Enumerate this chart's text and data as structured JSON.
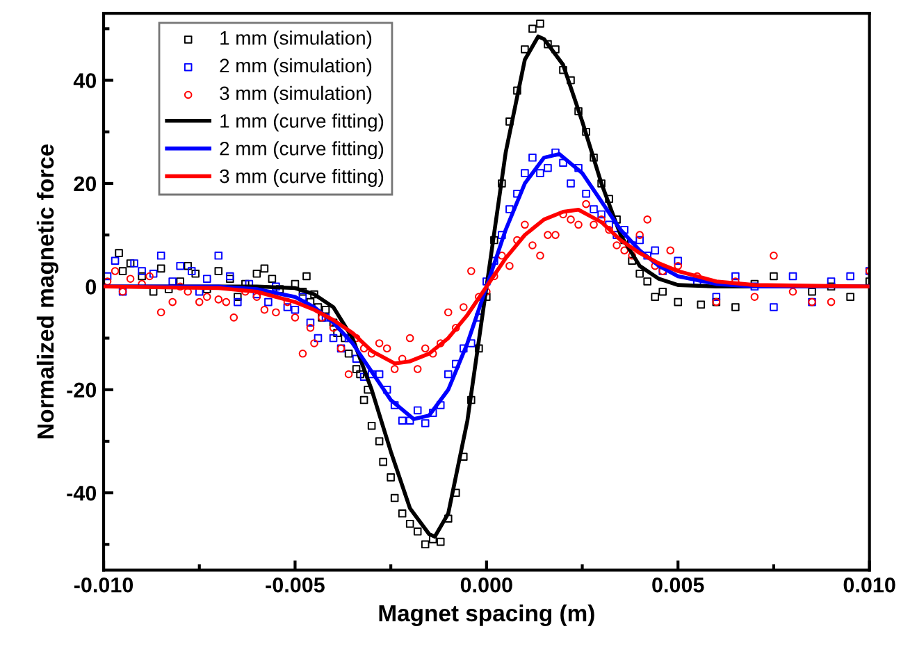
{
  "chart_data": {
    "type": "scatter",
    "xlabel": "Magnet spacing (m)",
    "ylabel": "Normalized magnetic force",
    "xlim": [
      -0.01,
      0.01
    ],
    "ylim": [
      -55,
      53
    ],
    "xticks": [
      {
        "value": -0.01,
        "label": "-0.010"
      },
      {
        "value": -0.005,
        "label": "-0.005"
      },
      {
        "value": 0,
        "label": "0.000"
      },
      {
        "value": 0.005,
        "label": "0.005"
      },
      {
        "value": 0.01,
        "label": "0.010"
      }
    ],
    "yticks": [
      -40,
      -20,
      0,
      20,
      40
    ],
    "grid": false,
    "legend": "top left",
    "series": [
      {
        "name": "1 mm (simulation)",
        "marker": "square",
        "color": "#000000",
        "x": [
          -0.0096,
          -0.0095,
          -0.0093,
          -0.009,
          -0.0087,
          -0.0085,
          -0.0083,
          -0.008,
          -0.0078,
          -0.0076,
          -0.0073,
          -0.007,
          -0.0067,
          -0.0065,
          -0.0063,
          -0.006,
          -0.0058,
          -0.0056,
          -0.0054,
          -0.005,
          -0.0048,
          -0.0047,
          -0.0046,
          -0.0045,
          -0.0044,
          -0.0043,
          -0.0042,
          -0.004,
          -0.0039,
          -0.0037,
          -0.0036,
          -0.0034,
          -0.0033,
          -0.0032,
          -0.0031,
          -0.003,
          -0.0028,
          -0.0027,
          -0.0025,
          -0.0024,
          -0.0022,
          -0.002,
          -0.0018,
          -0.0016,
          -0.0014,
          -0.0012,
          -0.001,
          -0.0008,
          -0.0006,
          -0.0004,
          -0.0002,
          0,
          0.0002,
          0.0004,
          0.0006,
          0.0008,
          0.001,
          0.0012,
          0.0014,
          0.0016,
          0.0018,
          0.002,
          0.0022,
          0.0024,
          0.0026,
          0.0028,
          0.003,
          0.0032,
          0.0034,
          0.0036,
          0.0038,
          0.004,
          0.0042,
          0.0044,
          0.0046,
          0.005,
          0.0056,
          0.006,
          0.0065,
          0.007,
          0.0075,
          0.0085,
          0.009,
          0.0095,
          0.01
        ],
        "values": [
          6.5,
          3,
          4.5,
          2,
          -1,
          3.5,
          -0.5,
          1,
          4,
          2.5,
          -0.5,
          3,
          1.5,
          -2,
          0.5,
          2.5,
          3.5,
          1.5,
          -0.5,
          0.5,
          -1,
          2,
          -3,
          -1.5,
          -4,
          -6,
          -4.5,
          -7,
          -9,
          -10,
          -13,
          -16,
          -17,
          -22,
          -20,
          -27,
          -30,
          -34,
          -37,
          -41,
          -44,
          -46,
          -47.5,
          -50,
          -49,
          -49.5,
          -45,
          -40,
          -33,
          -22,
          -12,
          -2,
          9,
          20,
          32,
          38,
          46,
          50,
          51,
          47,
          46,
          42,
          40,
          34,
          30,
          25,
          20,
          17,
          13,
          9,
          5,
          2.5,
          1,
          -2,
          -1,
          -3,
          -3.5,
          -3,
          -4,
          0.5,
          2,
          -1,
          0,
          -2,
          1
        ]
      },
      {
        "name": "2 mm (simulation)",
        "marker": "square",
        "color": "#0000ff",
        "x": [
          -0.0099,
          -0.0097,
          -0.0095,
          -0.0092,
          -0.009,
          -0.0087,
          -0.0085,
          -0.0082,
          -0.008,
          -0.0077,
          -0.0075,
          -0.0073,
          -0.007,
          -0.0067,
          -0.0065,
          -0.0062,
          -0.006,
          -0.0057,
          -0.0055,
          -0.0052,
          -0.005,
          -0.0048,
          -0.0046,
          -0.0044,
          -0.0042,
          -0.004,
          -0.0038,
          -0.0036,
          -0.0034,
          -0.0032,
          -0.003,
          -0.0028,
          -0.0026,
          -0.0024,
          -0.0022,
          -0.002,
          -0.0018,
          -0.0016,
          -0.0014,
          -0.0012,
          -0.001,
          -0.0008,
          -0.0006,
          -0.0004,
          -0.0002,
          0,
          0.0002,
          0.0004,
          0.0006,
          0.0008,
          0.001,
          0.0012,
          0.0014,
          0.0016,
          0.0018,
          0.002,
          0.0022,
          0.0024,
          0.0026,
          0.0028,
          0.003,
          0.0032,
          0.0034,
          0.0036,
          0.0038,
          0.004,
          0.0042,
          0.0044,
          0.0046,
          0.005,
          0.0055,
          0.006,
          0.0065,
          0.007,
          0.0075,
          0.008,
          0.0085,
          0.009,
          0.0095,
          0.01
        ],
        "values": [
          2,
          5,
          -1,
          4.5,
          3,
          2.5,
          6,
          1,
          4,
          3,
          -1,
          1.5,
          6,
          2,
          -3,
          0.5,
          -1.5,
          -3,
          0,
          -4,
          -4.5,
          -2,
          -7,
          -10,
          -6,
          -10,
          -12,
          -10,
          -14,
          -17.5,
          -17,
          -17,
          -20,
          -23,
          -26,
          -26,
          -24,
          -26.5,
          -24.5,
          -23,
          -17,
          -15,
          -12,
          -11,
          -6,
          1,
          5,
          10,
          15,
          18,
          22,
          25,
          22,
          23,
          26,
          24,
          20,
          23,
          18,
          15,
          14,
          12,
          10,
          11,
          8,
          9,
          6,
          7,
          3,
          5,
          1,
          -2,
          2,
          0,
          -4,
          2,
          -3,
          1,
          2,
          3
        ]
      },
      {
        "name": "3 mm (simulation)",
        "marker": "circle",
        "color": "#ff0000",
        "x": [
          -0.0099,
          -0.0097,
          -0.0095,
          -0.0093,
          -0.009,
          -0.0088,
          -0.0085,
          -0.0082,
          -0.008,
          -0.0078,
          -0.0075,
          -0.0073,
          -0.007,
          -0.0068,
          -0.0066,
          -0.0063,
          -0.006,
          -0.0058,
          -0.0055,
          -0.0052,
          -0.005,
          -0.0048,
          -0.0046,
          -0.0045,
          -0.0043,
          -0.004,
          -0.0038,
          -0.0036,
          -0.0034,
          -0.0032,
          -0.003,
          -0.0028,
          -0.0026,
          -0.0024,
          -0.0022,
          -0.002,
          -0.0018,
          -0.0016,
          -0.0014,
          -0.0012,
          -0.001,
          -0.0008,
          -0.0006,
          -0.0004,
          -0.0002,
          0,
          0.0002,
          0.0004,
          0.0006,
          0.0008,
          0.001,
          0.0012,
          0.0014,
          0.0016,
          0.0018,
          0.002,
          0.0022,
          0.0024,
          0.0026,
          0.0028,
          0.003,
          0.0032,
          0.0034,
          0.0036,
          0.0038,
          0.004,
          0.0042,
          0.0044,
          0.0046,
          0.0048,
          0.005,
          0.0055,
          0.006,
          0.0065,
          0.007,
          0.0075,
          0.008,
          0.0085,
          0.009,
          0.01
        ],
        "values": [
          1,
          3,
          -1,
          1.5,
          0.5,
          2,
          -5,
          -3,
          0,
          -1,
          -3,
          -2,
          -2.5,
          -3,
          -6,
          -1,
          -2,
          -4.5,
          -5,
          -3,
          -6,
          -13,
          -8,
          -11,
          -6,
          -8,
          -12,
          -17,
          -10,
          -12,
          -13,
          -11,
          -12,
          -16,
          -14,
          -10,
          -16,
          -12,
          -13,
          -11,
          -5,
          -8,
          -4,
          3,
          -2,
          -1,
          2,
          6,
          4,
          9,
          12,
          8,
          6,
          10,
          10,
          14,
          13,
          12,
          16,
          12,
          13,
          11,
          8,
          7,
          6,
          10,
          13,
          4,
          3,
          7,
          4,
          2,
          -3,
          1,
          -2,
          6,
          -1,
          -3,
          -3,
          3
        ]
      },
      {
        "name": "1 mm (curve fitting)",
        "type": "line",
        "line_style": "solid",
        "color": "#000000",
        "x": [
          -0.01,
          -0.006,
          -0.005,
          -0.0045,
          -0.004,
          -0.0035,
          -0.003,
          -0.0025,
          -0.002,
          -0.0015,
          -0.00135,
          -0.001,
          -0.0005,
          0,
          0.0005,
          0.001,
          0.00135,
          0.0015,
          0.002,
          0.0025,
          0.003,
          0.0035,
          0.004,
          0.0045,
          0.005,
          0.006,
          0.01
        ],
        "values": [
          0,
          0,
          -0.3,
          -1.5,
          -4,
          -10,
          -20,
          -32,
          -43,
          -48,
          -48.5,
          -44,
          -26,
          0,
          26,
          44,
          48.5,
          48,
          43,
          32,
          20,
          10,
          4,
          1.5,
          0.3,
          0,
          0
        ]
      },
      {
        "name": "2 mm (curve fitting)",
        "type": "line",
        "line_style": "solid",
        "color": "#0000ff",
        "x": [
          -0.01,
          -0.007,
          -0.006,
          -0.005,
          -0.0045,
          -0.004,
          -0.0035,
          -0.003,
          -0.0025,
          -0.0019,
          -0.0015,
          -0.001,
          -0.0005,
          0,
          0.0005,
          0.001,
          0.0015,
          0.0019,
          0.0025,
          0.003,
          0.0035,
          0.004,
          0.0045,
          0.005,
          0.006,
          0.007,
          0.01
        ],
        "values": [
          0,
          0,
          -0.5,
          -2,
          -4,
          -7,
          -11,
          -16.5,
          -22,
          -25.7,
          -25,
          -20,
          -11,
          0,
          11,
          20,
          25,
          25.7,
          22,
          16.5,
          11,
          7,
          4,
          2,
          0.5,
          0,
          0
        ]
      },
      {
        "name": "3 mm (curve fitting)",
        "type": "line",
        "line_style": "solid",
        "color": "#ff0000",
        "x": [
          -0.01,
          -0.007,
          -0.006,
          -0.005,
          -0.0045,
          -0.004,
          -0.0035,
          -0.003,
          -0.0024,
          -0.002,
          -0.0015,
          -0.001,
          -0.0005,
          0,
          0.0005,
          0.001,
          0.0015,
          0.002,
          0.0024,
          0.003,
          0.0035,
          0.004,
          0.0045,
          0.005,
          0.006,
          0.007,
          0.01
        ],
        "values": [
          0,
          -0.3,
          -1,
          -3,
          -4.5,
          -6.5,
          -9,
          -12.5,
          -14.9,
          -14.5,
          -13,
          -10,
          -5.5,
          0,
          5.5,
          10,
          13,
          14.5,
          14.9,
          12.5,
          9,
          6.5,
          4.5,
          3,
          1,
          0.3,
          0
        ]
      }
    ]
  }
}
